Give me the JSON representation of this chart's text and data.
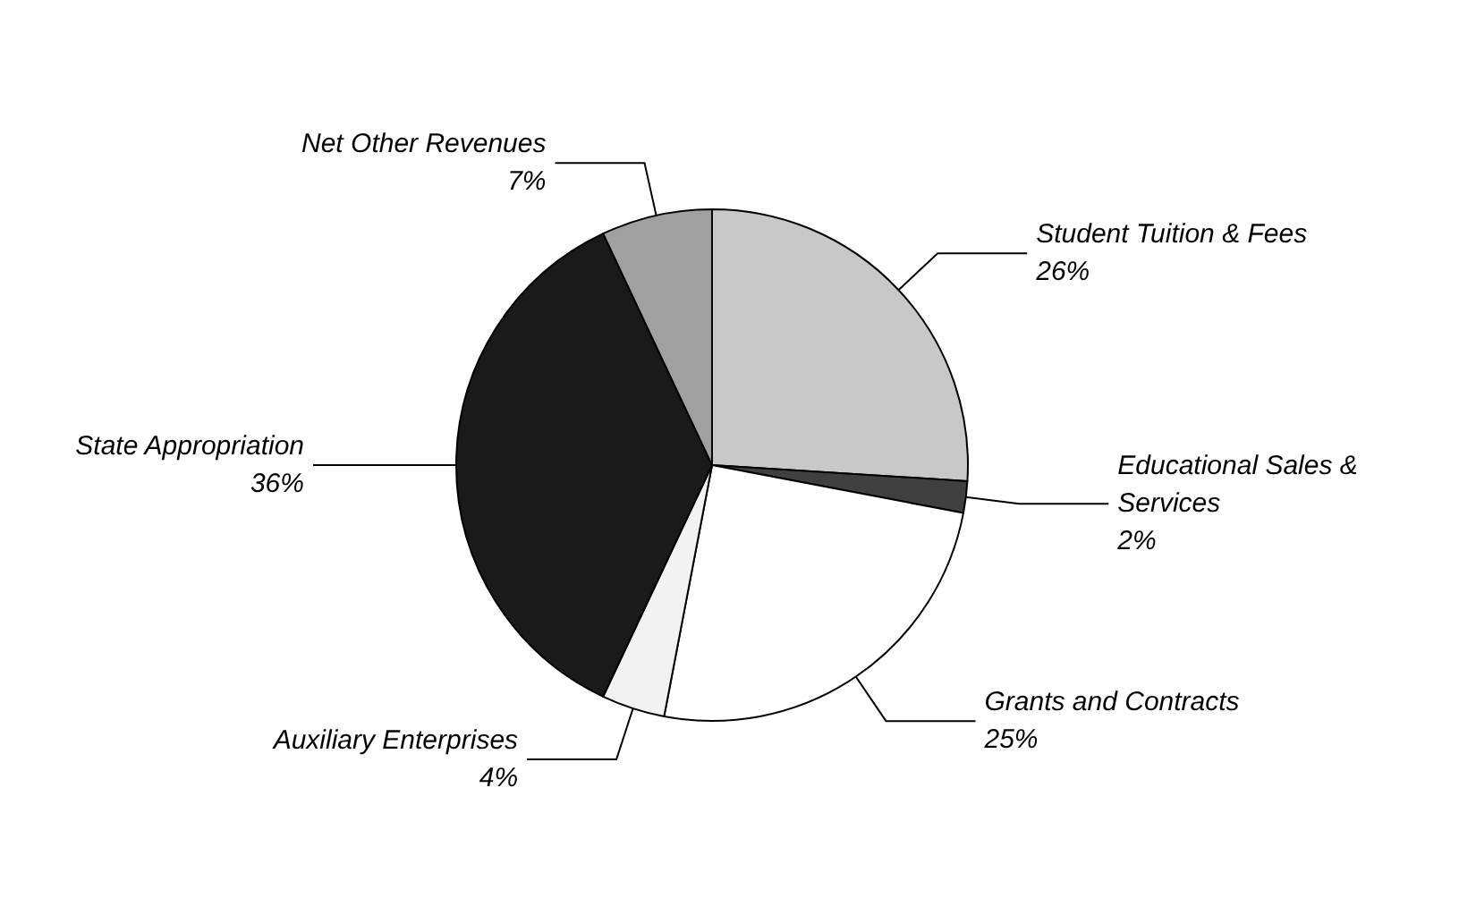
{
  "chart_data": {
    "type": "pie",
    "categories": [
      "Student Tuition & Fees",
      "Educational Sales & Services",
      "Grants and Contracts",
      "Auxiliary Enterprises",
      "State Appropriation",
      "Net Other Revenues"
    ],
    "values": [
      26,
      2,
      25,
      4,
      36,
      7
    ],
    "value_labels": [
      "26%",
      "2%",
      "25%",
      "4%",
      "36%",
      "7%"
    ],
    "colors": [
      "#c8c8c8",
      "#404040",
      "#ffffff",
      "#f2f2f2",
      "#1a1a1a",
      "#a0a0a0"
    ],
    "legend": false
  }
}
